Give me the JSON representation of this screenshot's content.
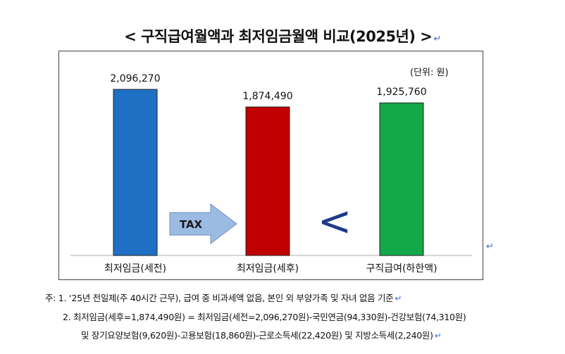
{
  "title": "< 구직급여월액과 최저임금월액 비교(2025년) >",
  "unit_label": "(단위: 원)",
  "return_mark": "↵",
  "chart_data": {
    "type": "bar",
    "categories": [
      "최저임금(세전)",
      "최저임금(세후)",
      "구직급여(하한액)"
    ],
    "values": [
      2096270,
      1874490,
      1925760
    ],
    "value_labels": [
      "2,096,270",
      "1,874,490",
      "1,925,760"
    ],
    "colors": [
      "#1f6fc5",
      "#c00000",
      "#13a84a"
    ],
    "arrow_label": "TAX",
    "comparison_symbol": "<",
    "arrow_color": "#9bbbe2",
    "symbol_color": "#1f3a8a"
  },
  "notes": [
    "주: 1. ‘25년 전일제(주 40시간 근무), 급여 중 비과세액 없음, 본인 외 부양가족 및 자녀 없음 기준",
    "2. 최저임금(세후=1,874,490원) = 최저임금(세전=2,096,270원)-국민연금(94,330원)-건강보험(74,310원)",
    "및 장기요양보험(9,620원)-고용보험(18,860원)-근로소득세(22,420원) 및 지방소득세(2,240원)"
  ]
}
